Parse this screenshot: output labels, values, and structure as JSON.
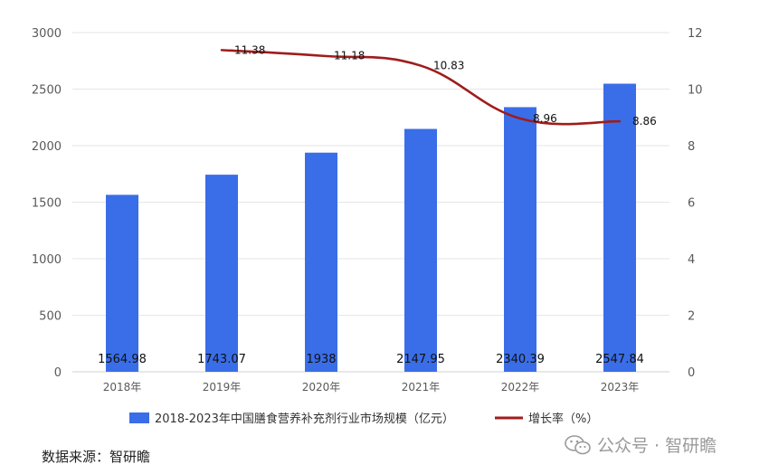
{
  "chart_data": {
    "type": "bar",
    "categories": [
      "2018年",
      "2019年",
      "2020年",
      "2021年",
      "2022年",
      "2023年"
    ],
    "series": [
      {
        "name": "2018-2023年中国膳食营养补充剂行业市场规模（亿元）",
        "type": "bar",
        "axis": "left",
        "values": [
          1564.98,
          1743.07,
          1938,
          2147.95,
          2340.39,
          2547.84
        ],
        "data_labels": [
          "1564.98",
          "1743.07",
          "1938",
          "2147.95",
          "2340.39",
          "2547.84"
        ],
        "color": "#3a6ee8"
      },
      {
        "name": "增长率（%）",
        "type": "line",
        "axis": "right",
        "values": [
          null,
          11.38,
          11.18,
          10.83,
          8.96,
          8.86
        ],
        "data_labels": [
          "",
          "11.38",
          "11.18",
          "10.83",
          "8.96",
          "8.86"
        ],
        "color": "#a01c1c"
      }
    ],
    "y_left": {
      "lim": [
        0,
        3000
      ],
      "ticks": [
        "0",
        "500",
        "1000",
        "1500",
        "2000",
        "2500",
        "3000"
      ]
    },
    "y_right": {
      "lim": [
        0,
        12
      ],
      "ticks": [
        "0",
        "2",
        "4",
        "6",
        "8",
        "10",
        "12"
      ]
    },
    "grid": true,
    "legend_position": "bottom"
  },
  "source_text": "数据来源：智研瞻",
  "watermark": {
    "text": "公众号 · 智研瞻",
    "icon": "wechat-icon"
  }
}
